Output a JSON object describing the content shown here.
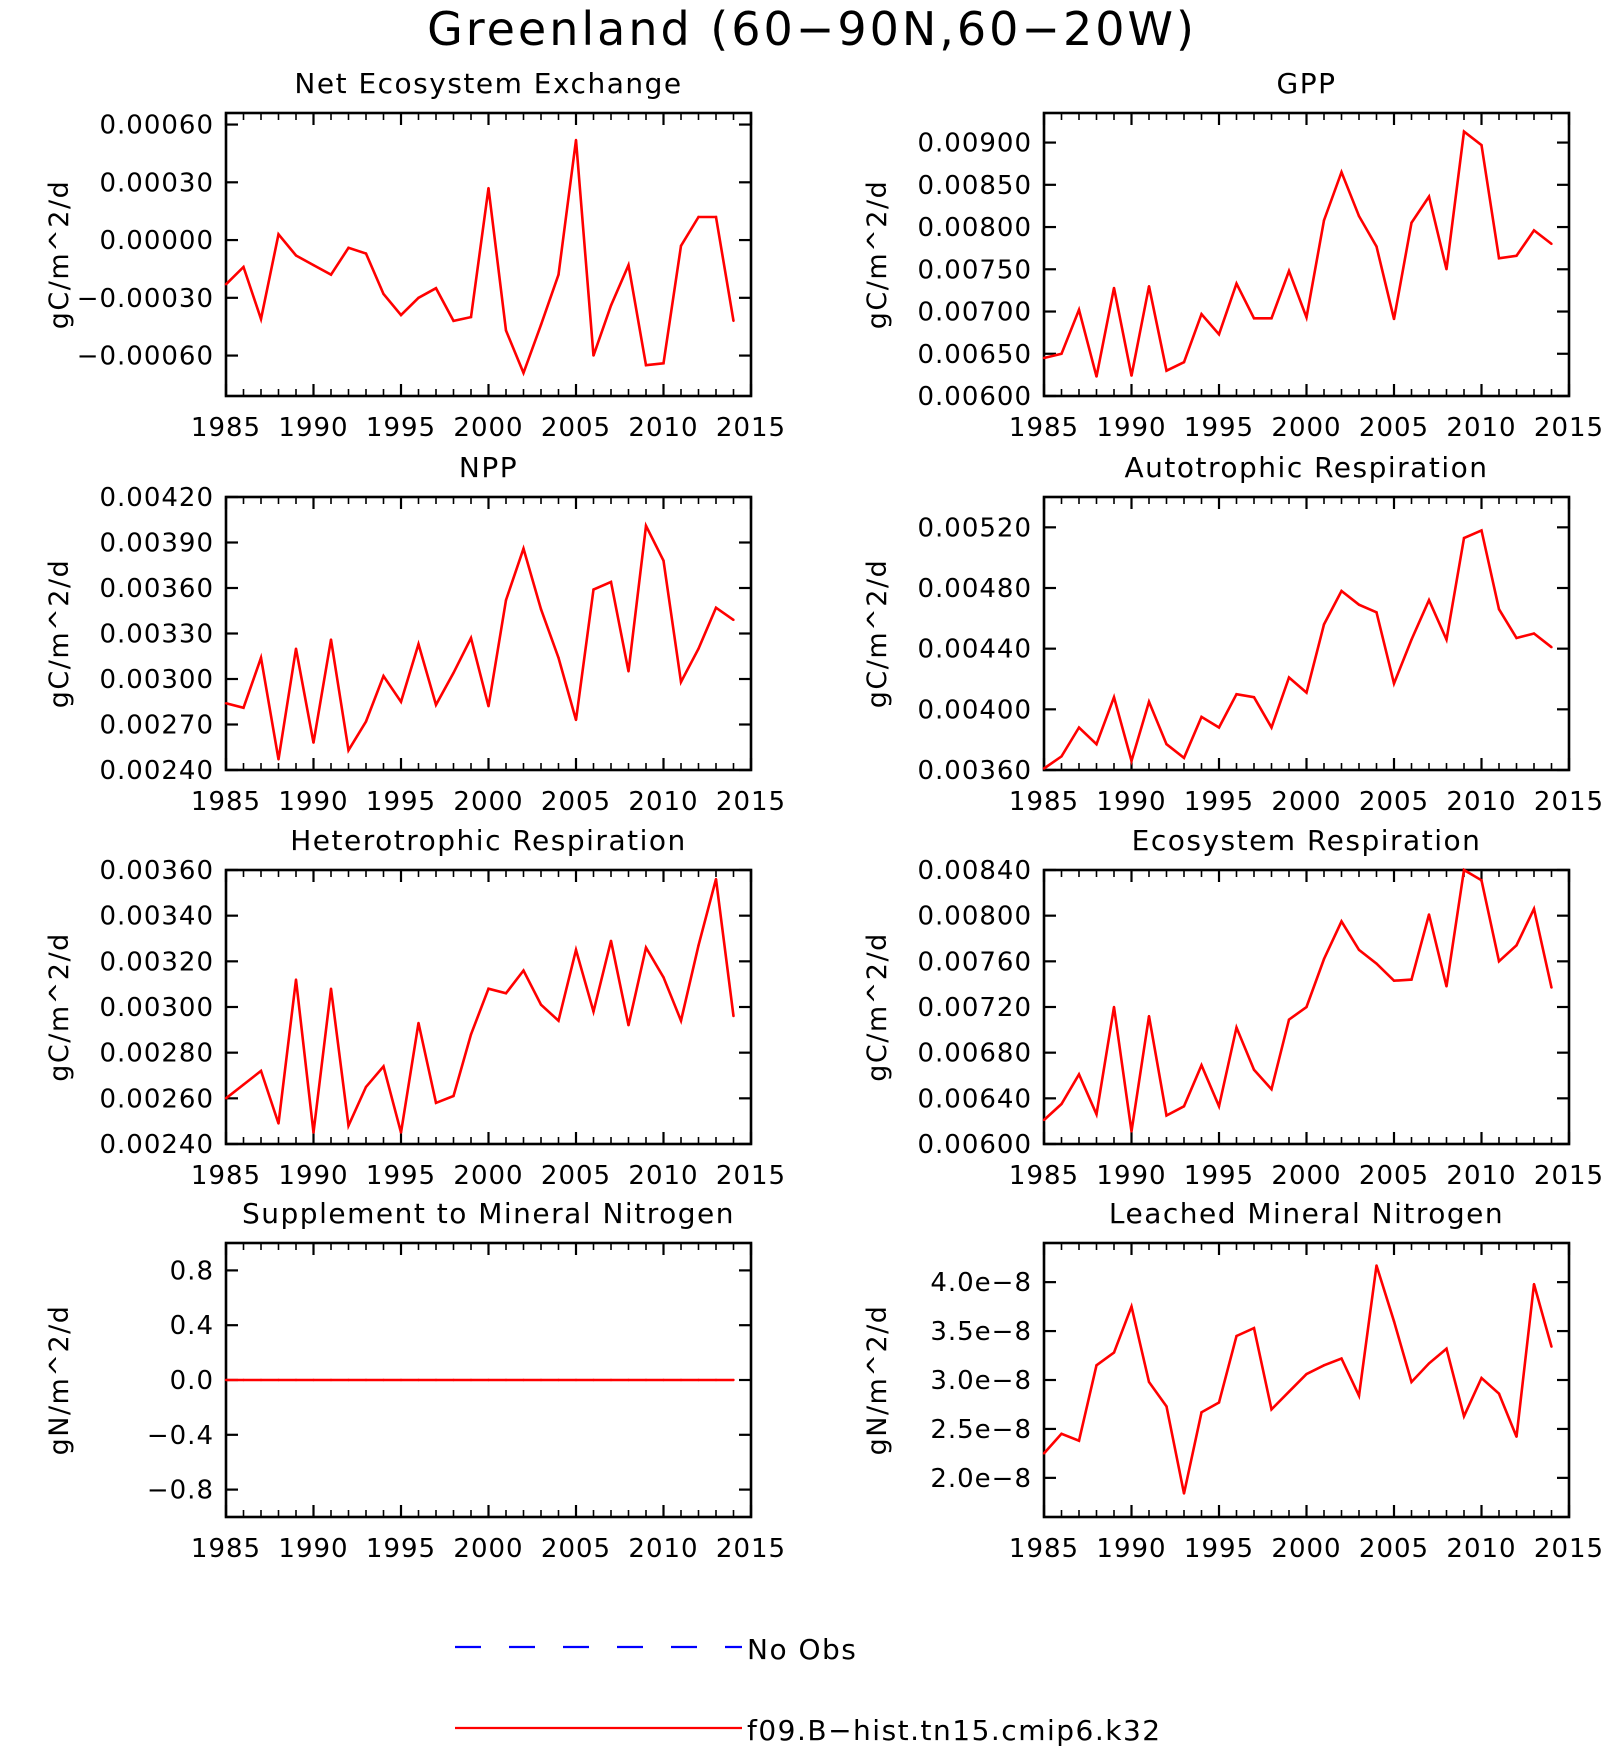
{
  "figure_title": "Greenland (60-90N,60-20W)",
  "legend": [
    {
      "label": "No Obs",
      "color": "#0000ff",
      "style": "dashed"
    },
    {
      "label": "f09.B-hist.tn15.cmip6.k32",
      "color": "#ff0000",
      "style": "solid"
    }
  ],
  "colors": {
    "series": "#ff0000",
    "obs": "#0000ff",
    "axes": "#000000"
  },
  "chart_data": [
    {
      "type": "line",
      "title": "Net Ecosystem Exchange",
      "ylabel": "gC/m^2/d",
      "xlim": [
        1985,
        2015
      ],
      "ylim": [
        -0.00081,
        0.00066
      ],
      "yticks": [
        -0.0006,
        -0.0003,
        0.0,
        0.0003,
        0.0006
      ],
      "ytick_labels": [
        "-0.00060",
        "-0.00030",
        "0.00000",
        "0.00030",
        "0.00060"
      ],
      "xticks": [
        1985,
        1990,
        1995,
        2000,
        2005,
        2010,
        2015
      ],
      "x": [
        1985,
        1986,
        1987,
        1988,
        1989,
        1990,
        1991,
        1992,
        1993,
        1994,
        1995,
        1996,
        1997,
        1998,
        1999,
        2000,
        2001,
        2002,
        2003,
        2004,
        2005,
        2006,
        2007,
        2008,
        2009,
        2010,
        2011,
        2012,
        2013,
        2014
      ],
      "series": [
        {
          "values": [
            -0.00023,
            -0.00014,
            -0.00041,
            3e-05,
            -8e-05,
            -0.00013,
            -0.00018,
            -4e-05,
            -7e-05,
            -0.00028,
            -0.00039,
            -0.0003,
            -0.00025,
            -0.00042,
            -0.0004,
            0.00027,
            -0.00047,
            -0.00069,
            -0.00044,
            -0.00018,
            0.00052,
            -0.0006,
            -0.00034,
            -0.00013,
            -0.00065,
            -0.00064,
            -3e-05,
            0.00012,
            0.00012,
            -0.00042
          ]
        }
      ]
    },
    {
      "type": "line",
      "title": "GPP",
      "ylabel": "gC/m^2/d",
      "xlim": [
        1985,
        2015
      ],
      "ylim": [
        0.006,
        0.00935
      ],
      "yticks": [
        0.006,
        0.0065,
        0.007,
        0.0075,
        0.008,
        0.0085,
        0.009
      ],
      "ytick_labels": [
        "0.00600",
        "0.00650",
        "0.00700",
        "0.00750",
        "0.00800",
        "0.00850",
        "0.00900"
      ],
      "xticks": [
        1985,
        1990,
        1995,
        2000,
        2005,
        2010,
        2015
      ],
      "x": [
        1985,
        1986,
        1987,
        1988,
        1989,
        1990,
        1991,
        1992,
        1993,
        1994,
        1995,
        1996,
        1997,
        1998,
        1999,
        2000,
        2001,
        2002,
        2003,
        2004,
        2005,
        2006,
        2007,
        2008,
        2009,
        2010,
        2011,
        2012,
        2013,
        2014
      ],
      "series": [
        {
          "values": [
            0.00645,
            0.0065,
            0.00702,
            0.00623,
            0.00728,
            0.00624,
            0.0073,
            0.0063,
            0.0064,
            0.00697,
            0.00673,
            0.00733,
            0.00692,
            0.00692,
            0.00748,
            0.00693,
            0.00808,
            0.00865,
            0.00813,
            0.00777,
            0.00691,
            0.00805,
            0.00836,
            0.0075,
            0.00913,
            0.00897,
            0.00763,
            0.00766,
            0.00796,
            0.0078
          ]
        }
      ]
    },
    {
      "type": "line",
      "title": "NPP",
      "ylabel": "gC/m^2/d",
      "xlim": [
        1985,
        2015
      ],
      "ylim": [
        0.0024,
        0.0042
      ],
      "yticks": [
        0.0024,
        0.0027,
        0.003,
        0.0033,
        0.0036,
        0.0039,
        0.0042
      ],
      "ytick_labels": [
        "0.00240",
        "0.00270",
        "0.00300",
        "0.00330",
        "0.00360",
        "0.00390",
        "0.00420"
      ],
      "xticks": [
        1985,
        1990,
        1995,
        2000,
        2005,
        2010,
        2015
      ],
      "x": [
        1985,
        1986,
        1987,
        1988,
        1989,
        1990,
        1991,
        1992,
        1993,
        1994,
        1995,
        1996,
        1997,
        1998,
        1999,
        2000,
        2001,
        2002,
        2003,
        2004,
        2005,
        2006,
        2007,
        2008,
        2009,
        2010,
        2011,
        2012,
        2013,
        2014
      ],
      "series": [
        {
          "values": [
            0.00284,
            0.00281,
            0.00314,
            0.00247,
            0.0032,
            0.00258,
            0.00326,
            0.00253,
            0.00272,
            0.00302,
            0.00285,
            0.00323,
            0.00283,
            0.00304,
            0.00327,
            0.00282,
            0.00352,
            0.00386,
            0.00346,
            0.00314,
            0.00273,
            0.00359,
            0.00364,
            0.00305,
            0.00401,
            0.00378,
            0.00298,
            0.0032,
            0.00347,
            0.00339
          ]
        }
      ]
    },
    {
      "type": "line",
      "title": "Autotrophic Respiration",
      "ylabel": "gC/m^2/d",
      "xlim": [
        1985,
        2015
      ],
      "ylim": [
        0.0036,
        0.0054
      ],
      "yticks": [
        0.0036,
        0.004,
        0.0044,
        0.0048,
        0.0052
      ],
      "ytick_labels": [
        "0.00360",
        "0.00400",
        "0.00440",
        "0.00480",
        "0.00520"
      ],
      "xticks": [
        1985,
        1990,
        1995,
        2000,
        2005,
        2010,
        2015
      ],
      "x": [
        1985,
        1986,
        1987,
        1988,
        1989,
        1990,
        1991,
        1992,
        1993,
        1994,
        1995,
        1996,
        1997,
        1998,
        1999,
        2000,
        2001,
        2002,
        2003,
        2004,
        2005,
        2006,
        2007,
        2008,
        2009,
        2010,
        2011,
        2012,
        2013,
        2014
      ],
      "series": [
        {
          "values": [
            0.00361,
            0.00369,
            0.00388,
            0.00377,
            0.00408,
            0.00366,
            0.00405,
            0.00377,
            0.00368,
            0.00395,
            0.00388,
            0.0041,
            0.00408,
            0.00388,
            0.00421,
            0.00411,
            0.00456,
            0.00478,
            0.00469,
            0.00464,
            0.00417,
            0.00446,
            0.00472,
            0.00446,
            0.00513,
            0.00518,
            0.00466,
            0.00447,
            0.0045,
            0.00441
          ]
        }
      ]
    },
    {
      "type": "line",
      "title": "Heterotrophic Respiration",
      "ylabel": "gC/m^2/d",
      "xlim": [
        1985,
        2015
      ],
      "ylim": [
        0.0024,
        0.0036
      ],
      "yticks": [
        0.0024,
        0.0026,
        0.0028,
        0.003,
        0.0032,
        0.0034,
        0.0036
      ],
      "ytick_labels": [
        "0.00240",
        "0.00260",
        "0.00280",
        "0.00300",
        "0.00320",
        "0.00340",
        "0.00360"
      ],
      "xticks": [
        1985,
        1990,
        1995,
        2000,
        2005,
        2010,
        2015
      ],
      "x": [
        1985,
        1986,
        1987,
        1988,
        1989,
        1990,
        1991,
        1992,
        1993,
        1994,
        1995,
        1996,
        1997,
        1998,
        1999,
        2000,
        2001,
        2002,
        2003,
        2004,
        2005,
        2006,
        2007,
        2008,
        2009,
        2010,
        2011,
        2012,
        2013,
        2014
      ],
      "series": [
        {
          "values": [
            0.0026,
            0.00266,
            0.00272,
            0.00249,
            0.00312,
            0.00245,
            0.00308,
            0.00248,
            0.00265,
            0.00274,
            0.00245,
            0.00293,
            0.00258,
            0.00261,
            0.00288,
            0.00308,
            0.00306,
            0.00316,
            0.00301,
            0.00294,
            0.00325,
            0.00298,
            0.00329,
            0.00292,
            0.00326,
            0.00313,
            0.00294,
            0.00327,
            0.00356,
            0.00296
          ]
        }
      ]
    },
    {
      "type": "line",
      "title": "Ecosystem Respiration",
      "ylabel": "gC/m^2/d",
      "xlim": [
        1985,
        2015
      ],
      "ylim": [
        0.006,
        0.0084
      ],
      "yticks": [
        0.006,
        0.0064,
        0.0068,
        0.0072,
        0.0076,
        0.008,
        0.0084
      ],
      "ytick_labels": [
        "0.00600",
        "0.00640",
        "0.00680",
        "0.00720",
        "0.00760",
        "0.00800",
        "0.00840"
      ],
      "xticks": [
        1985,
        1990,
        1995,
        2000,
        2005,
        2010,
        2015
      ],
      "x": [
        1985,
        1986,
        1987,
        1988,
        1989,
        1990,
        1991,
        1992,
        1993,
        1994,
        1995,
        1996,
        1997,
        1998,
        1999,
        2000,
        2001,
        2002,
        2003,
        2004,
        2005,
        2006,
        2007,
        2008,
        2009,
        2010,
        2011,
        2012,
        2013,
        2014
      ],
      "series": [
        {
          "values": [
            0.00621,
            0.00635,
            0.00661,
            0.00626,
            0.0072,
            0.00611,
            0.00712,
            0.00625,
            0.00633,
            0.00669,
            0.00633,
            0.00702,
            0.00665,
            0.00648,
            0.00709,
            0.0072,
            0.00762,
            0.00795,
            0.0077,
            0.00758,
            0.00743,
            0.00744,
            0.00801,
            0.00738,
            0.0084,
            0.00831,
            0.0076,
            0.00774,
            0.00806,
            0.00737
          ]
        }
      ]
    },
    {
      "type": "line",
      "title": "Supplement to Mineral Nitrogen",
      "ylabel": "gN/m^2/d",
      "xlim": [
        1985,
        2015
      ],
      "ylim": [
        -1.0,
        1.0
      ],
      "yticks": [
        -0.8,
        -0.4,
        0.0,
        0.4,
        0.8
      ],
      "ytick_labels": [
        "-0.8",
        "-0.4",
        "0.0",
        "0.4",
        "0.8"
      ],
      "xticks": [
        1985,
        1990,
        1995,
        2000,
        2005,
        2010,
        2015
      ],
      "x": [
        1985,
        1986,
        1987,
        1988,
        1989,
        1990,
        1991,
        1992,
        1993,
        1994,
        1995,
        1996,
        1997,
        1998,
        1999,
        2000,
        2001,
        2002,
        2003,
        2004,
        2005,
        2006,
        2007,
        2008,
        2009,
        2010,
        2011,
        2012,
        2013,
        2014
      ],
      "series": [
        {
          "values": [
            0,
            0,
            0,
            0,
            0,
            0,
            0,
            0,
            0,
            0,
            0,
            0,
            0,
            0,
            0,
            0,
            0,
            0,
            0,
            0,
            0,
            0,
            0,
            0,
            0,
            0,
            0,
            0,
            0,
            0
          ]
        }
      ]
    },
    {
      "type": "line",
      "title": "Leached Mineral Nitrogen",
      "ylabel": "gN/m^2/d",
      "xlim": [
        1985,
        2015
      ],
      "ylim": [
        1.6e-08,
        4.4e-08
      ],
      "yticks": [
        2e-08,
        2.5e-08,
        3e-08,
        3.5e-08,
        4e-08
      ],
      "ytick_labels": [
        "2.0e-8",
        "2.5e-8",
        "3.0e-8",
        "3.5e-8",
        "4.0e-8"
      ],
      "xticks": [
        1985,
        1990,
        1995,
        2000,
        2005,
        2010,
        2015
      ],
      "x": [
        1985,
        1986,
        1987,
        1988,
        1989,
        1990,
        1991,
        1992,
        1993,
        1994,
        1995,
        1996,
        1997,
        1998,
        1999,
        2000,
        2001,
        2002,
        2003,
        2004,
        2005,
        2006,
        2007,
        2008,
        2009,
        2010,
        2011,
        2012,
        2013,
        2014
      ],
      "series": [
        {
          "values": [
            2.25e-08,
            2.45e-08,
            2.38e-08,
            3.15e-08,
            3.28e-08,
            3.75e-08,
            2.98e-08,
            2.73e-08,
            1.84e-08,
            2.67e-08,
            2.77e-08,
            3.45e-08,
            3.53e-08,
            2.7e-08,
            2.88e-08,
            3.06e-08,
            3.15e-08,
            3.22e-08,
            2.84e-08,
            4.17e-08,
            3.6e-08,
            2.98e-08,
            3.17e-08,
            3.32e-08,
            2.63e-08,
            3.02e-08,
            2.86e-08,
            2.42e-08,
            3.98e-08,
            3.34e-08
          ]
        }
      ]
    }
  ]
}
